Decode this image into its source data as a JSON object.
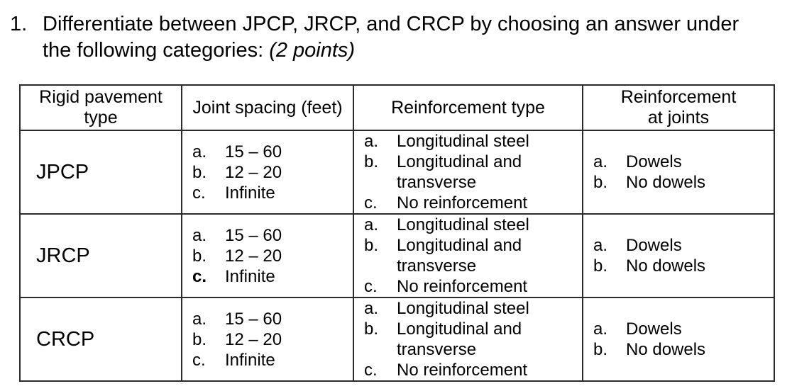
{
  "question": {
    "number": "1.",
    "lines": [
      "Differentiate between JPCP, JRCP, and CRCP by choosing an answer under",
      "the following categories: "
    ],
    "points": "(2 points)"
  },
  "table": {
    "headers": [
      "Rigid pavement\ntype",
      "Joint spacing (feet)",
      "Reinforcement type",
      "Reinforcement\nat joints"
    ],
    "rows": [
      {
        "type": "JPCP",
        "joint_spacing": [
          {
            "marker": "a.",
            "text": "15 – 60"
          },
          {
            "marker": "b.",
            "text": "12 – 20"
          },
          {
            "marker": "c.",
            "text": "Infinite"
          }
        ],
        "reinforcement_type": [
          {
            "marker": "a.",
            "text": "Longitudinal steel"
          },
          {
            "marker": "b.",
            "text": "Longitudinal and transverse"
          },
          {
            "marker": "c.",
            "text": "No reinforcement"
          }
        ],
        "reinforcement_at_joints": [
          {
            "marker": "a.",
            "text": "Dowels"
          },
          {
            "marker": "b.",
            "text": "No dowels"
          }
        ]
      },
      {
        "type": "JRCP",
        "joint_spacing": [
          {
            "marker": "a.",
            "text": "15 – 60"
          },
          {
            "marker": "b.",
            "text": "12 – 20"
          },
          {
            "marker": "c.",
            "text": "Infinite",
            "marker_bold": true
          }
        ],
        "reinforcement_type": [
          {
            "marker": "a.",
            "text": "Longitudinal steel"
          },
          {
            "marker": "b.",
            "text": "Longitudinal and transverse"
          },
          {
            "marker": "c.",
            "text": "No reinforcement"
          }
        ],
        "reinforcement_at_joints": [
          {
            "marker": "a.",
            "text": "Dowels"
          },
          {
            "marker": "b.",
            "text": "No dowels"
          }
        ]
      },
      {
        "type": "CRCP",
        "joint_spacing": [
          {
            "marker": "a.",
            "text": "15 – 60"
          },
          {
            "marker": "b.",
            "text": "12 – 20"
          },
          {
            "marker": "c.",
            "text": "Infinite"
          }
        ],
        "reinforcement_type": [
          {
            "marker": "a.",
            "text": "Longitudinal steel"
          },
          {
            "marker": "b.",
            "text": "Longitudinal and transverse"
          },
          {
            "marker": "c.",
            "text": "No reinforcement"
          }
        ],
        "reinforcement_at_joints": [
          {
            "marker": "a.",
            "text": "Dowels"
          },
          {
            "marker": "b.",
            "text": "No dowels"
          }
        ]
      }
    ]
  }
}
